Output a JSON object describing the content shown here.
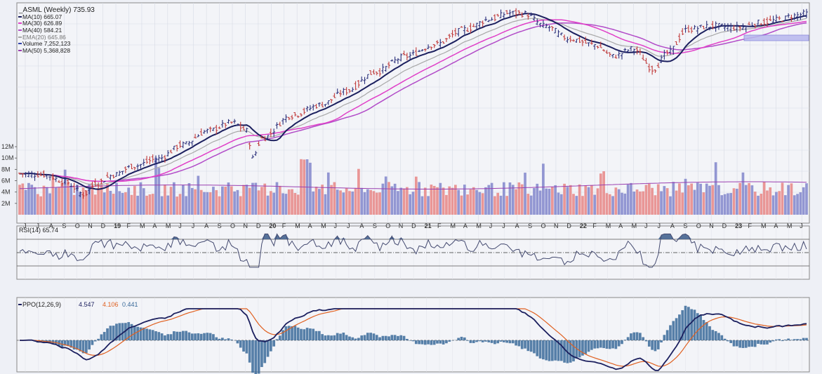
{
  "chart_data": [
    {
      "type": "ohlc",
      "title": "_ASML (Weekly) 735.93",
      "panel": "price",
      "legend": [
        {
          "label": "MA(10) 665.07",
          "color": "#1b1f5e"
        },
        {
          "label": "MA(30) 626.89",
          "color": "#e040c8"
        },
        {
          "label": "MA(40) 584.21",
          "color": "#b24cc8"
        },
        {
          "label": "EMA(20) 645.86",
          "color": "#a8a8a8"
        },
        {
          "label": "Volume 7,252,123",
          "color": "#3344aa"
        },
        {
          "label": "MA(50) 5,368,828",
          "color": "#9a3fb0"
        }
      ],
      "x_ticks": [
        "J",
        "J",
        "A",
        "S",
        "O",
        "N",
        "D",
        "19",
        "F",
        "M",
        "A",
        "M",
        "J",
        "J",
        "A",
        "S",
        "O",
        "N",
        "D",
        "20",
        "F",
        "M",
        "A",
        "M",
        "J",
        "J",
        "A",
        "S",
        "O",
        "N",
        "D",
        "21",
        "F",
        "M",
        "A",
        "M",
        "J",
        "J",
        "A",
        "S",
        "O",
        "N",
        "D",
        "22",
        "F",
        "M",
        "A",
        "M",
        "J",
        "J",
        "A",
        "S",
        "O",
        "N",
        "D",
        "23",
        "F",
        "M",
        "A",
        "M",
        "J"
      ],
      "volume_ticks": [
        "12M",
        "10M",
        "8M",
        "6M",
        "4M",
        "2M"
      ],
      "volume_range": [
        0,
        12500000
      ],
      "price_approx": {
        "x": [
          "2018-06",
          "2018-09",
          "2018-12",
          "2019-03",
          "2019-06",
          "2019-09",
          "2019-12",
          "2020-02",
          "2020-03",
          "2020-06",
          "2020-09",
          "2020-12",
          "2021-03",
          "2021-06",
          "2021-09",
          "2021-11",
          "2022-01",
          "2022-03",
          "2022-06",
          "2022-09",
          "2022-10",
          "2022-12",
          "2023-02",
          "2023-04",
          "2023-05"
        ],
        "close": [
          175,
          165,
          155,
          185,
          200,
          245,
          290,
          275,
          180,
          330,
          360,
          480,
          530,
          620,
          750,
          760,
          700,
          600,
          560,
          500,
          470,
          600,
          640,
          660,
          735.93
        ]
      },
      "grid": true
    },
    {
      "type": "line",
      "panel": "rsi",
      "title": "RSI(14) 65.74",
      "reference_lines": [
        30,
        50,
        70
      ]
    },
    {
      "type": "line",
      "panel": "ppo",
      "title": "PPO(12,26,9)",
      "values": [
        "4.547",
        "4.106",
        "0.441"
      ],
      "series": [
        {
          "name": "PPO",
          "color": "#1b1f5e"
        },
        {
          "name": "Signal",
          "color": "#e06020"
        },
        {
          "name": "Histogram",
          "color": "#3a6a9a"
        }
      ]
    }
  ]
}
